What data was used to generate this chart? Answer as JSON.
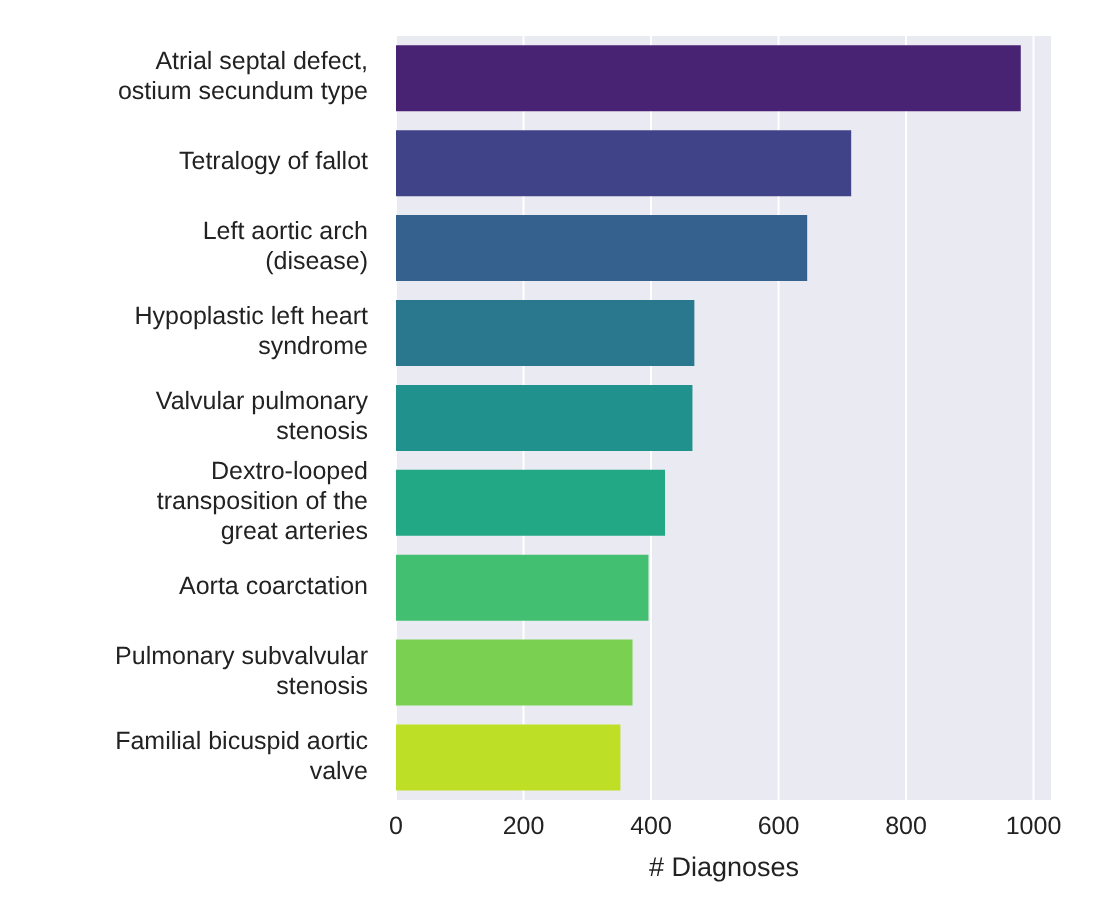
{
  "chart_data": {
    "type": "bar",
    "orientation": "horizontal",
    "xlabel": "# Diagnoses",
    "categories": [
      "Atrial septal defect, ostium secundum type",
      "Tetralogy of fallot",
      "Left aortic arch (disease)",
      "Hypoplastic left heart syndrome",
      "Valvular pulmonary stenosis",
      "Dextro-looped transposition of the great arteries",
      "Aorta coarctation",
      "Pulmonary subvalvular stenosis",
      "Familial bicuspid aortic valve"
    ],
    "values": [
      980,
      714,
      645,
      468,
      465,
      422,
      396,
      371,
      352
    ],
    "colors": [
      "#482374",
      "#404387",
      "#34618d",
      "#29788e",
      "#20918c",
      "#22a884",
      "#43bf71",
      "#7ad151",
      "#bddf26"
    ],
    "xlim": [
      0,
      1029
    ],
    "xticks": [
      0,
      200,
      400,
      600,
      800,
      1000
    ],
    "grid": "x"
  }
}
